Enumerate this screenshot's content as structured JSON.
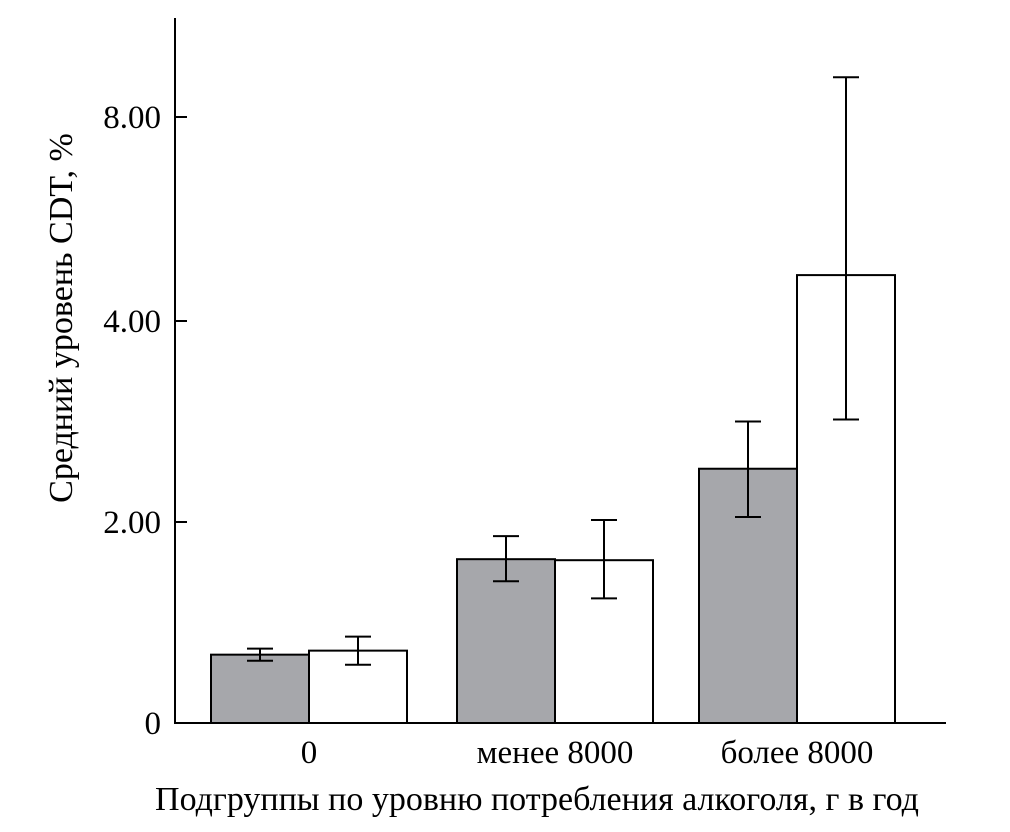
{
  "chart_data": {
    "type": "bar",
    "title": "",
    "xlabel": "Подгруппы по уровню потребления алкоголя, г в год",
    "ylabel": "Средний уровень CDT, %",
    "categories": [
      "0",
      "менее 8000",
      "более 8000"
    ],
    "series": [
      {
        "color": "#a6a7ab",
        "values": [
          0.68,
          1.63,
          2.53
        ],
        "error_low": [
          0.62,
          1.41,
          2.05
        ],
        "error_high": [
          0.74,
          1.86,
          3.0
        ]
      },
      {
        "color": "#ffffff",
        "values": [
          0.72,
          1.62,
          4.9
        ],
        "error_low": [
          0.58,
          1.24,
          3.02
        ],
        "error_high": [
          0.86,
          2.02,
          8.78
        ]
      }
    ],
    "y_ticks": [
      {
        "value": 0,
        "label": "0"
      },
      {
        "value": 2,
        "label": "2.00"
      },
      {
        "value": 4,
        "label": "4.00"
      },
      {
        "value": 8,
        "label": "8.00"
      }
    ],
    "y_scale_note_visible": false,
    "grid": false,
    "legend": "none"
  }
}
